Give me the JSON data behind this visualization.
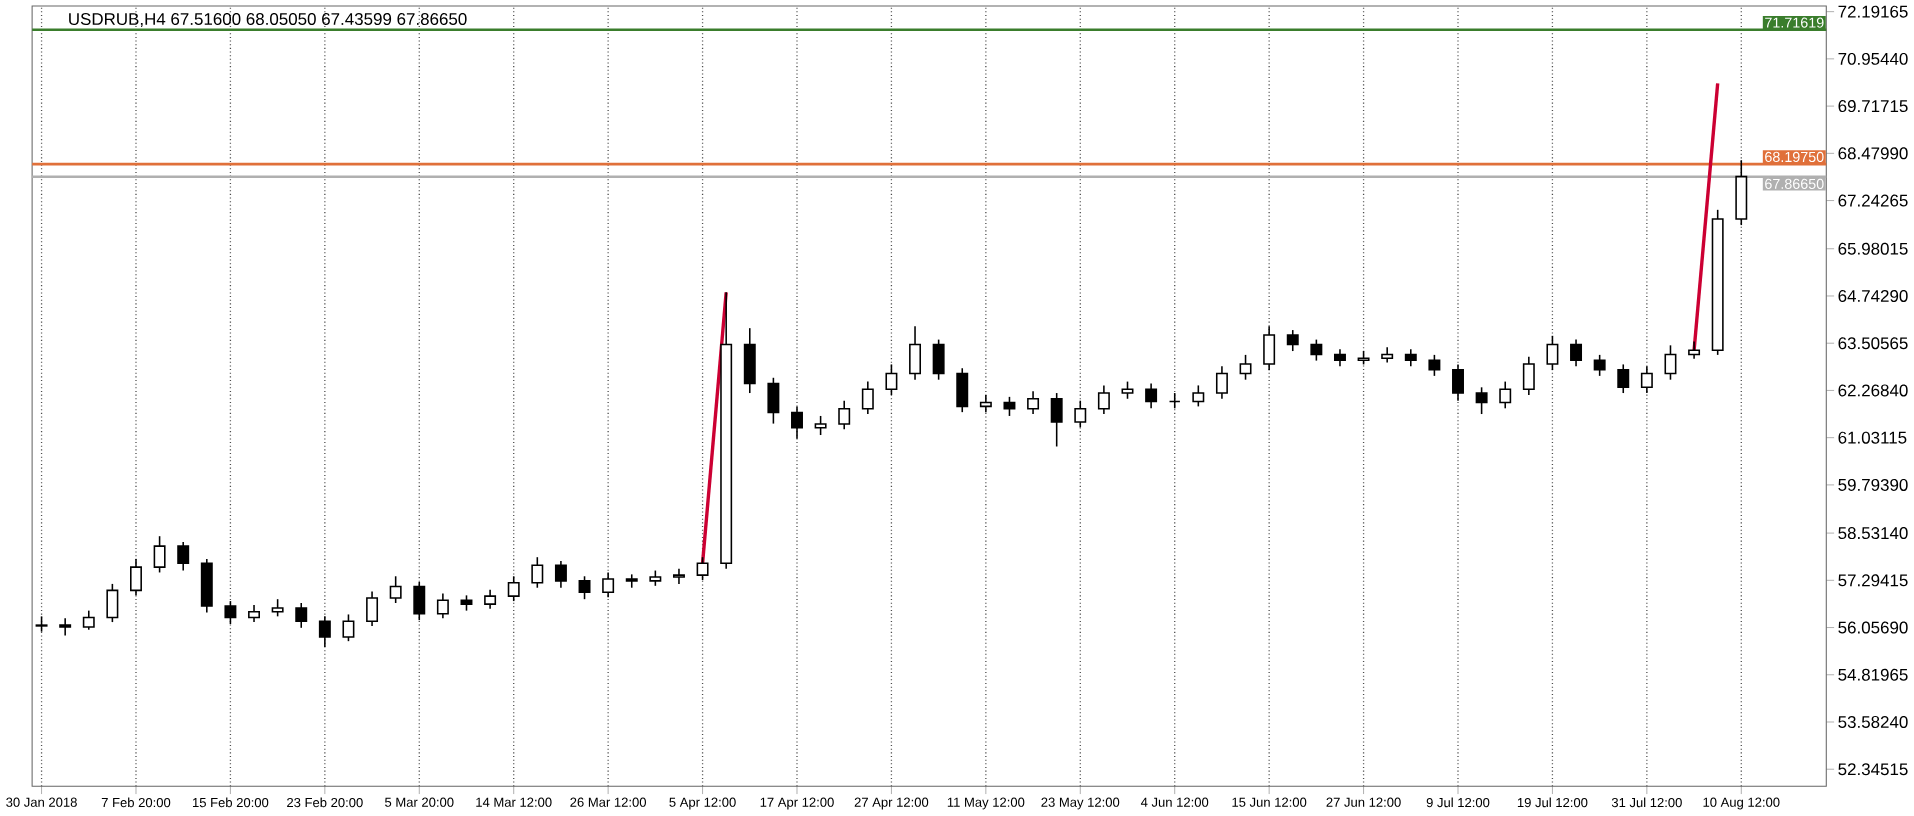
{
  "chart_data": {
    "type": "candlestick",
    "title": "USDRUB,H4  67.51600 68.05050 67.43599 67.86650",
    "color": "#000000",
    "categories": [
      "30 Jan 2018",
      null,
      null,
      null,
      "7 Feb 20:00",
      null,
      null,
      null,
      "15 Feb 20:00",
      null,
      null,
      null,
      "23 Feb 20:00",
      null,
      null,
      null,
      "5 Mar 20:00",
      null,
      null,
      null,
      "14 Mar 12:00",
      null,
      null,
      null,
      "26 Mar 12:00",
      null,
      null,
      null,
      "5 Apr 12:00",
      null,
      null,
      null,
      "17 Apr 12:00",
      null,
      null,
      null,
      "27 Apr 12:00",
      null,
      null,
      null,
      "11 May 12:00",
      null,
      null,
      null,
      "23 May 12:00",
      null,
      null,
      null,
      "4 Jun 12:00",
      null,
      null,
      null,
      "15 Jun 12:00",
      null,
      null,
      null,
      "27 Jun 12:00",
      null,
      null,
      null,
      "9 Jul 12:00",
      null,
      null,
      null,
      "19 Jul 12:00",
      null,
      null,
      null,
      "31 Jul 12:00",
      null,
      null,
      null,
      "10 Aug 12:00"
    ],
    "ohlc": [
      [
        56.1,
        56.35,
        55.95,
        56.12
      ],
      [
        56.12,
        56.3,
        55.85,
        56.07
      ],
      [
        56.07,
        56.5,
        56.0,
        56.32
      ],
      [
        56.32,
        57.2,
        56.2,
        57.03
      ],
      [
        57.03,
        57.85,
        56.9,
        57.64
      ],
      [
        57.64,
        58.45,
        57.5,
        58.19
      ],
      [
        58.19,
        58.3,
        57.55,
        57.74
      ],
      [
        57.74,
        57.85,
        56.45,
        56.62
      ],
      [
        56.62,
        56.75,
        56.15,
        56.32
      ],
      [
        56.32,
        56.65,
        56.2,
        56.47
      ],
      [
        56.47,
        56.8,
        56.35,
        56.57
      ],
      [
        56.57,
        56.7,
        56.05,
        56.22
      ],
      [
        56.22,
        56.35,
        55.55,
        55.81
      ],
      [
        55.81,
        56.4,
        55.7,
        56.22
      ],
      [
        56.22,
        57.0,
        56.1,
        56.83
      ],
      [
        56.83,
        57.4,
        56.7,
        57.13
      ],
      [
        57.13,
        57.25,
        56.25,
        56.42
      ],
      [
        56.42,
        56.95,
        56.3,
        56.77
      ],
      [
        56.77,
        56.9,
        56.5,
        56.67
      ],
      [
        56.67,
        57.05,
        56.55,
        56.88
      ],
      [
        56.88,
        57.4,
        56.75,
        57.23
      ],
      [
        57.23,
        57.9,
        57.1,
        57.69
      ],
      [
        57.69,
        57.8,
        57.1,
        57.28
      ],
      [
        57.28,
        57.4,
        56.8,
        56.98
      ],
      [
        56.98,
        57.5,
        56.85,
        57.33
      ],
      [
        57.33,
        57.45,
        57.1,
        57.28
      ],
      [
        57.28,
        57.55,
        57.15,
        57.38
      ],
      [
        57.38,
        57.6,
        57.2,
        57.43
      ],
      [
        57.43,
        57.9,
        57.3,
        57.74
      ],
      [
        57.74,
        64.84,
        57.6,
        63.47
      ],
      [
        63.47,
        63.9,
        62.2,
        62.45
      ],
      [
        62.45,
        62.6,
        61.4,
        61.69
      ],
      [
        61.69,
        61.85,
        61.0,
        61.29
      ],
      [
        61.29,
        61.6,
        61.1,
        61.39
      ],
      [
        61.39,
        62.0,
        61.25,
        61.79
      ],
      [
        61.79,
        62.5,
        61.65,
        62.3
      ],
      [
        62.3,
        62.95,
        62.15,
        62.71
      ],
      [
        62.71,
        63.95,
        62.55,
        63.47
      ],
      [
        63.47,
        63.6,
        62.55,
        62.71
      ],
      [
        62.71,
        62.85,
        61.7,
        61.85
      ],
      [
        61.85,
        62.15,
        61.7,
        61.95
      ],
      [
        61.95,
        62.1,
        61.6,
        61.79
      ],
      [
        61.79,
        62.25,
        61.65,
        62.05
      ],
      [
        62.05,
        62.2,
        60.8,
        61.44
      ],
      [
        61.44,
        62.0,
        61.3,
        61.79
      ],
      [
        61.79,
        62.4,
        61.65,
        62.2
      ],
      [
        62.2,
        62.5,
        62.05,
        62.3
      ],
      [
        62.3,
        62.45,
        61.8,
        61.98
      ],
      [
        61.98,
        62.2,
        61.8,
        61.98
      ],
      [
        61.98,
        62.4,
        61.85,
        62.2
      ],
      [
        62.2,
        62.9,
        62.05,
        62.71
      ],
      [
        62.71,
        63.2,
        62.55,
        62.96
      ],
      [
        62.96,
        63.95,
        62.8,
        63.72
      ],
      [
        63.72,
        63.85,
        63.3,
        63.47
      ],
      [
        63.47,
        63.6,
        63.05,
        63.21
      ],
      [
        63.21,
        63.35,
        62.9,
        63.06
      ],
      [
        63.06,
        63.3,
        62.95,
        63.11
      ],
      [
        63.11,
        63.4,
        63.0,
        63.21
      ],
      [
        63.21,
        63.35,
        62.9,
        63.06
      ],
      [
        63.06,
        63.2,
        62.65,
        62.81
      ],
      [
        62.81,
        62.95,
        62.0,
        62.2
      ],
      [
        62.2,
        62.35,
        61.65,
        61.95
      ],
      [
        61.95,
        62.5,
        61.8,
        62.3
      ],
      [
        62.3,
        63.15,
        62.15,
        62.96
      ],
      [
        62.96,
        63.7,
        62.8,
        63.47
      ],
      [
        63.47,
        63.6,
        62.9,
        63.06
      ],
      [
        63.06,
        63.2,
        62.65,
        62.81
      ],
      [
        62.81,
        62.95,
        62.2,
        62.35
      ],
      [
        62.35,
        62.9,
        62.2,
        62.71
      ],
      [
        62.71,
        63.45,
        62.55,
        63.21
      ],
      [
        63.21,
        63.55,
        63.1,
        63.32
      ],
      [
        63.32,
        67.0,
        63.2,
        66.76
      ],
      [
        66.76,
        68.3,
        66.6,
        67.87
      ]
    ],
    "series": [
      {
        "type": "line",
        "color": "#cc0033",
        "values": [
          null,
          null,
          null,
          null,
          null,
          null,
          null,
          null,
          null,
          null,
          null,
          null,
          null,
          null,
          null,
          null,
          null,
          null,
          null,
          null,
          null,
          null,
          null,
          null,
          null,
          null,
          null,
          null,
          57.74,
          64.84,
          null,
          null,
          null,
          null,
          null,
          null,
          null,
          null,
          null,
          null,
          null,
          null,
          null,
          null,
          null,
          null,
          null,
          null,
          null,
          null,
          null,
          null,
          null,
          null,
          null,
          null,
          null,
          null,
          null,
          null,
          null,
          null,
          null,
          null,
          null,
          null,
          null,
          null,
          null,
          null,
          null,
          null,
          null
        ]
      },
      {
        "type": "line",
        "color": "#cc0033",
        "values": [
          null,
          null,
          null,
          null,
          null,
          null,
          null,
          null,
          null,
          null,
          null,
          null,
          null,
          null,
          null,
          null,
          null,
          null,
          null,
          null,
          null,
          null,
          null,
          null,
          null,
          null,
          null,
          null,
          null,
          null,
          null,
          null,
          null,
          null,
          null,
          null,
          null,
          null,
          null,
          null,
          null,
          null,
          null,
          null,
          null,
          null,
          null,
          null,
          null,
          null,
          null,
          null,
          null,
          null,
          null,
          null,
          null,
          null,
          null,
          null,
          null,
          null,
          null,
          null,
          null,
          null,
          null,
          null,
          null,
          null,
          63.32,
          70.31,
          null
        ]
      }
    ],
    "ylim": [
      51.9,
      72.34
    ],
    "yticks": [
      {
        "value": 72.19165,
        "label": "72.19165"
      },
      {
        "value": 70.9544,
        "label": "70.95440"
      },
      {
        "value": 69.71715,
        "label": "69.71715"
      },
      {
        "value": 68.4799,
        "label": "68.47990"
      },
      {
        "value": 67.24265,
        "label": "67.24265"
      },
      {
        "value": 65.98015,
        "label": "65.98015"
      },
      {
        "value": 64.7429,
        "label": "64.74290"
      },
      {
        "value": 63.50565,
        "label": "63.50565"
      },
      {
        "value": 62.2684,
        "label": "62.26840"
      },
      {
        "value": 61.03115,
        "label": "61.03115"
      },
      {
        "value": 59.7939,
        "label": "59.79390"
      },
      {
        "value": 58.5314,
        "label": "58.53140"
      },
      {
        "value": 57.29415,
        "label": "57.29415"
      },
      {
        "value": 56.0569,
        "label": "56.05690"
      },
      {
        "value": 54.81965,
        "label": "54.81965"
      },
      {
        "value": 53.5824,
        "label": "53.58240"
      },
      {
        "value": 52.34515,
        "label": "52.34515"
      }
    ],
    "ref_lines": [
      {
        "axis": "y",
        "value": 71.71619,
        "label": "71.71619",
        "color": "#3a7d2c"
      },
      {
        "axis": "y",
        "value": 68.1975,
        "label": "68.19750",
        "color": "#e0703a"
      },
      {
        "axis": "y",
        "value": 67.8665,
        "label": "67.86650",
        "color": "#b0b0b0"
      }
    ],
    "grid": "x"
  }
}
